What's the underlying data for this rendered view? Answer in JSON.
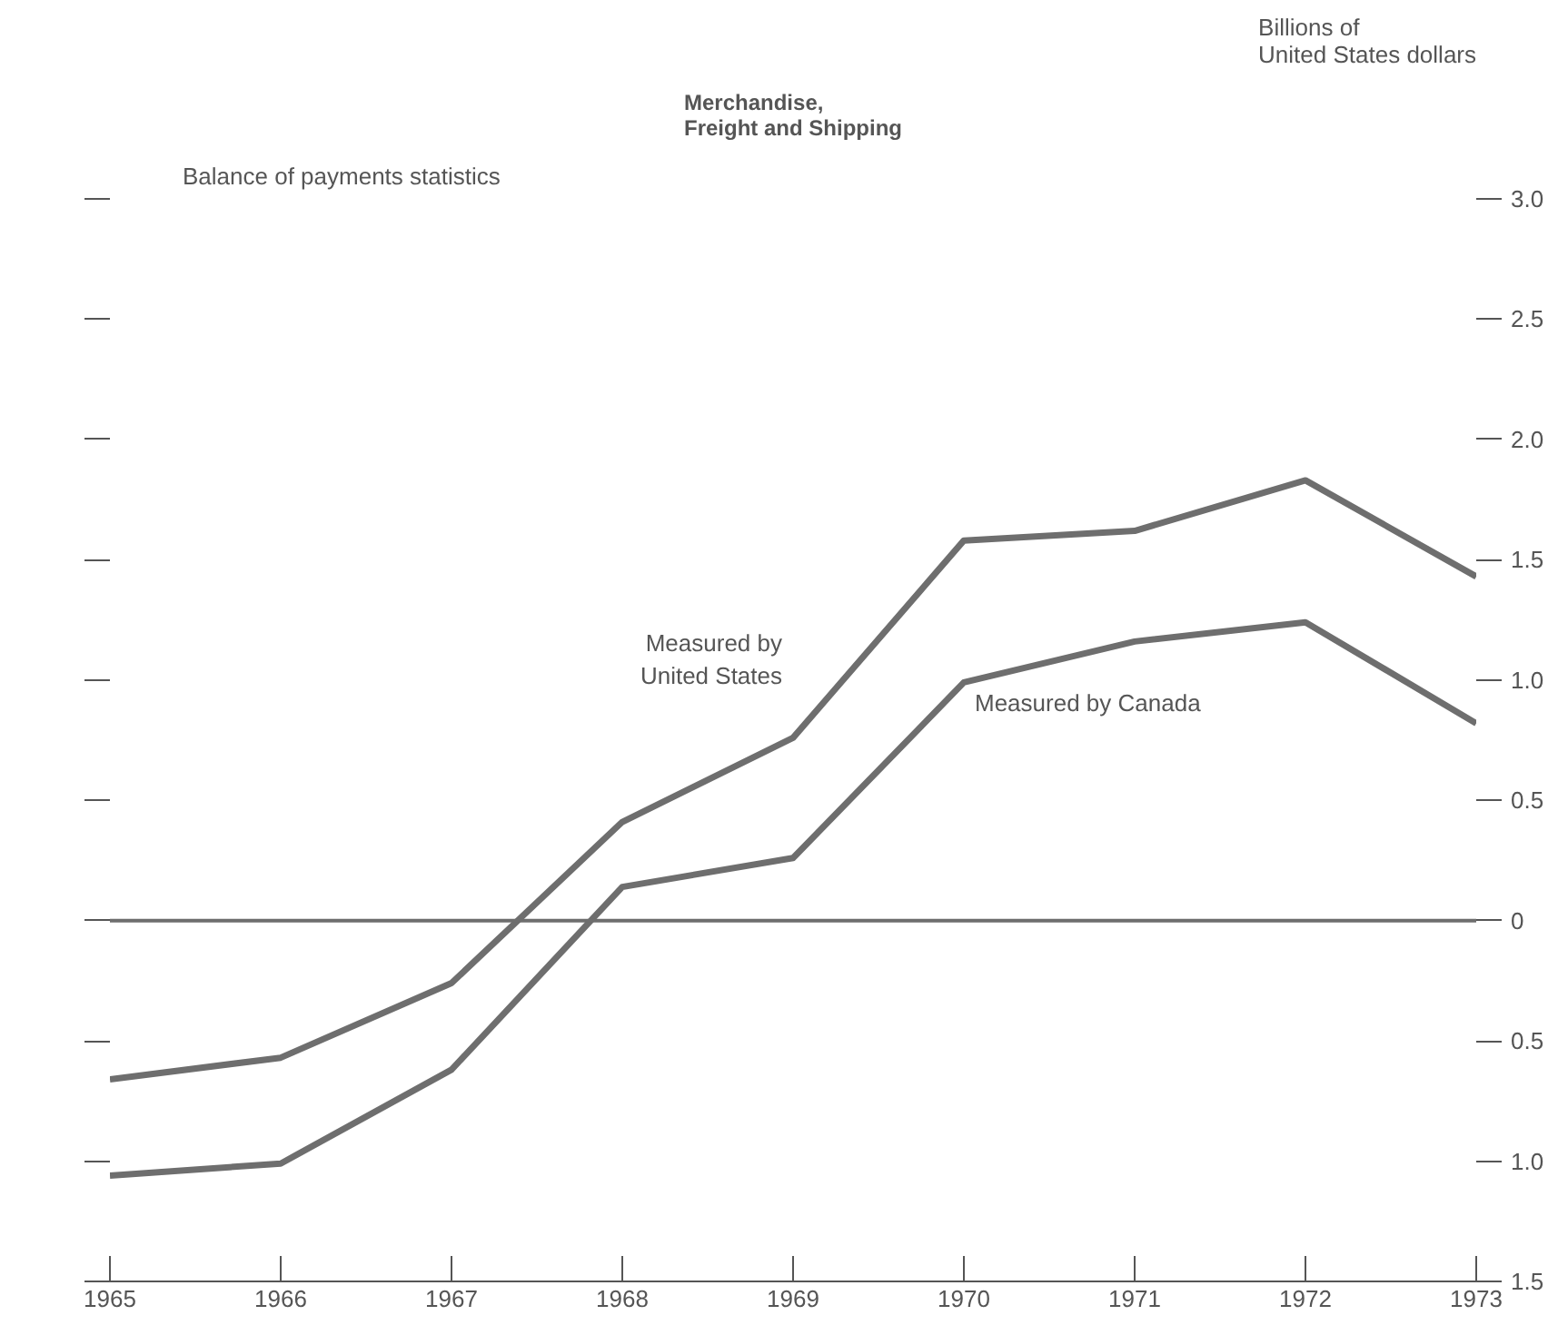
{
  "chart_data": {
    "type": "line",
    "title": "Merchandise,\nFreight and Shipping",
    "subtitle": "Balance of payments statistics",
    "y2label": "Billions of\nUnited States dollars",
    "x": [
      1965,
      1966,
      1967,
      1968,
      1969,
      1970,
      1971,
      1972,
      1973
    ],
    "xlim": [
      1965,
      1973
    ],
    "xticks": [
      1965,
      1966,
      1967,
      1968,
      1969,
      1970,
      1971,
      1972,
      1973
    ],
    "ylim": [
      -1.5,
      3.0
    ],
    "yticks": [
      {
        "value": -1.5,
        "label": "1.5"
      },
      {
        "value": -1.0,
        "label": "1.0"
      },
      {
        "value": -0.5,
        "label": "0.5"
      },
      0,
      0.5,
      {
        "value": 1.0,
        "label": "1.0"
      },
      1.5,
      {
        "value": 2.0,
        "label": "2.0"
      },
      2.5,
      {
        "value": 3.0,
        "label": "3.0"
      }
    ],
    "grid": false,
    "line_style": "solid",
    "marker": "none",
    "ref_lines": [
      {
        "axis": "y",
        "value": 0,
        "color": "#6e6e6e"
      }
    ],
    "series": [
      {
        "name": "Measured by\nUnited States",
        "color": "#6e6e6e",
        "values": [
          -0.66,
          -0.57,
          -0.26,
          0.41,
          0.76,
          1.58,
          1.62,
          1.83,
          1.43
        ]
      },
      {
        "name": "Measured by Canada",
        "color": "#6e6e6e",
        "values": [
          -1.06,
          -1.01,
          -0.62,
          0.14,
          0.26,
          0.99,
          1.16,
          1.24,
          0.82
        ]
      }
    ]
  }
}
